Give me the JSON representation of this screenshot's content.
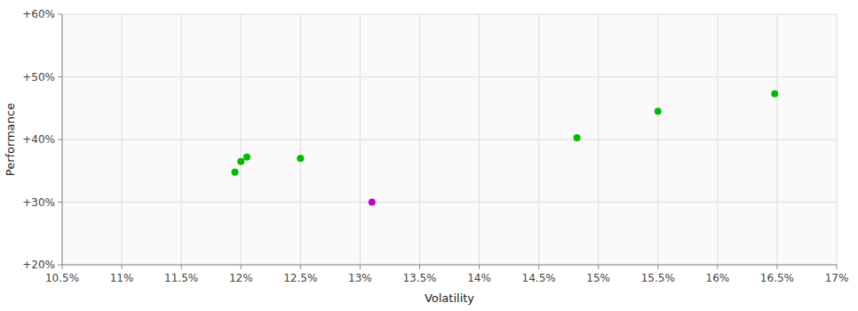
{
  "chart_data": {
    "type": "scatter",
    "xlabel": "Volatility",
    "ylabel": "Performance",
    "xlim": [
      10.5,
      17.0
    ],
    "ylim": [
      20.0,
      60.0
    ],
    "xticks": [
      {
        "value": 10.5,
        "label": "10.5%"
      },
      {
        "value": 11.0,
        "label": "11%"
      },
      {
        "value": 11.5,
        "label": "11.5%"
      },
      {
        "value": 12.0,
        "label": "12%"
      },
      {
        "value": 12.5,
        "label": "12.5%"
      },
      {
        "value": 13.0,
        "label": "13%"
      },
      {
        "value": 13.5,
        "label": "13.5%"
      },
      {
        "value": 14.0,
        "label": "14%"
      },
      {
        "value": 14.5,
        "label": "14.5%"
      },
      {
        "value": 15.0,
        "label": "15%"
      },
      {
        "value": 15.5,
        "label": "15.5%"
      },
      {
        "value": 16.0,
        "label": "16%"
      },
      {
        "value": 16.5,
        "label": "16.5%"
      },
      {
        "value": 17.0,
        "label": "17%"
      }
    ],
    "yticks": [
      {
        "value": 20,
        "label": "+20%"
      },
      {
        "value": 30,
        "label": "+30%"
      },
      {
        "value": 40,
        "label": "+40%"
      },
      {
        "value": 50,
        "label": "+50%"
      },
      {
        "value": 60,
        "label": "+60%"
      }
    ],
    "grid": true,
    "series": [
      {
        "color": "#00bb00",
        "x": [
          11.95,
          12.0,
          12.05,
          12.5,
          14.82,
          15.5,
          16.48
        ],
        "values": [
          34.8,
          36.5,
          37.2,
          37.0,
          40.3,
          44.5,
          47.3
        ]
      },
      {
        "color": "#cc00cc",
        "x": [
          13.1
        ],
        "values": [
          30.0
        ]
      }
    ]
  }
}
